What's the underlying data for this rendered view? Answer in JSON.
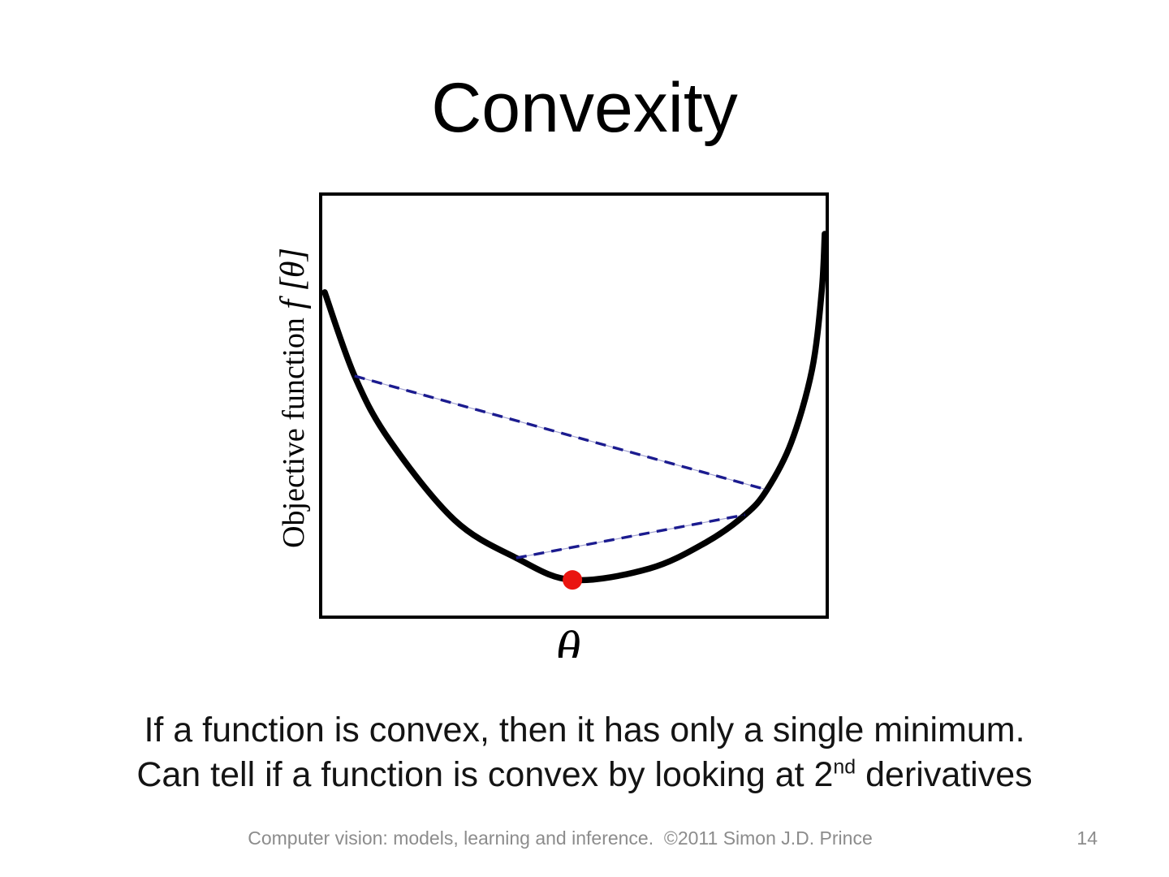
{
  "slide": {
    "title": "Convexity",
    "body": {
      "line1": "If a function is convex, then it has only a single minimum.",
      "line2_before_sup": "Can tell if a function is convex by looking at 2",
      "line2_sup": "nd",
      "line2_after_sup": " derivatives"
    },
    "footer": {
      "text": "Computer vision: models, learning and inference.  ©2011 Simon J.D. Prince",
      "page_number": "14"
    }
  },
  "plot": {
    "ylabel_text": "Objective function",
    "ylabel_math": "  f [θ]",
    "xlabel": "θ"
  },
  "colors": {
    "title_text": "#000000",
    "body_text": "#141414",
    "footer_text": "#8c8c8c",
    "curve": "#000000",
    "chord": "#1b1b8f",
    "minimum_marker": "#ea1510",
    "frame": "#000000"
  },
  "chart_data": {
    "type": "line",
    "title": "Convexity",
    "xlabel": "θ",
    "ylabel": "Objective function f[θ]",
    "axes": {
      "x_ticks": [],
      "y_ticks": [],
      "grid": false,
      "frame": true
    },
    "note": "Qualitative convex objective function; points normalized 0-1 inside the plot frame (x rightward, y upward). Two dashed chords lie entirely above the curve, illustrating convexity; red marker is the single global minimum.",
    "series": [
      {
        "name": "objective-function-curve",
        "style": "solid",
        "color": "#000000",
        "points": [
          [
            0.008,
            0.768
          ],
          [
            0.067,
            0.57
          ],
          [
            0.136,
            0.418
          ],
          [
            0.264,
            0.23
          ],
          [
            0.386,
            0.14
          ],
          [
            0.497,
            0.088
          ],
          [
            0.649,
            0.115
          ],
          [
            0.761,
            0.177
          ],
          [
            0.838,
            0.242
          ],
          [
            0.881,
            0.301
          ],
          [
            0.929,
            0.413
          ],
          [
            0.97,
            0.585
          ],
          [
            0.989,
            0.768
          ],
          [
            0.995,
            0.906
          ]
        ]
      },
      {
        "name": "chord-upper",
        "style": "dashed",
        "color": "#1b1b8f",
        "points": [
          [
            0.067,
            0.57
          ],
          [
            0.881,
            0.301
          ]
        ]
      },
      {
        "name": "chord-lower",
        "style": "dashed",
        "color": "#1b1b8f",
        "points": [
          [
            0.386,
            0.14
          ],
          [
            0.838,
            0.242
          ]
        ]
      }
    ],
    "minimum_marker": {
      "name": "global-minimum",
      "color": "#ea1510",
      "point": [
        0.497,
        0.088
      ]
    }
  }
}
